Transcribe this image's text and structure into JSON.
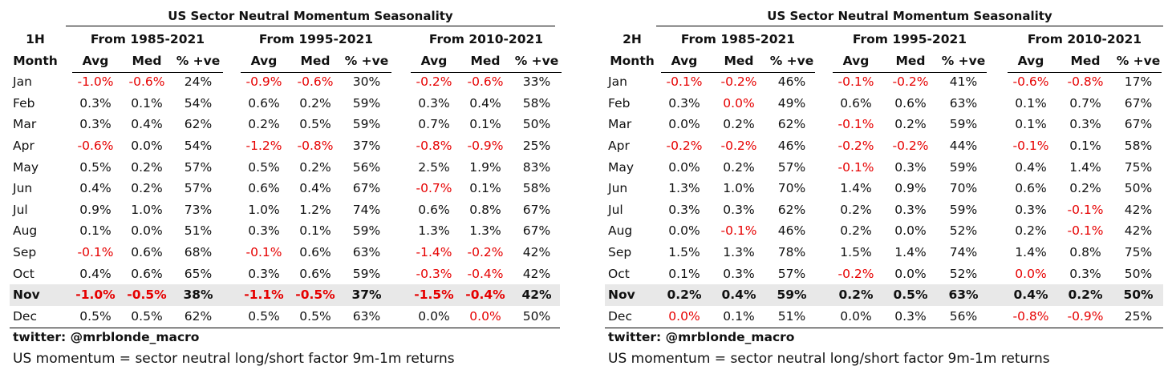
{
  "left": {
    "title": "US Sector Neutral Momentum Seasonality",
    "half": "1H",
    "month_header": "Month",
    "groups": [
      "From 1985-2021",
      "From 1995-2021",
      "From 2010-2021"
    ],
    "subheaders": [
      "Avg",
      "Med",
      "% +ve"
    ],
    "rows": [
      {
        "m": "Jan",
        "v": [
          "-1.0%",
          "-0.6%",
          "24%",
          "-0.9%",
          "-0.6%",
          "30%",
          "-0.2%",
          "-0.6%",
          "33%"
        ]
      },
      {
        "m": "Feb",
        "v": [
          "0.3%",
          "0.1%",
          "54%",
          "0.6%",
          "0.2%",
          "59%",
          "0.3%",
          "0.4%",
          "58%"
        ]
      },
      {
        "m": "Mar",
        "v": [
          "0.3%",
          "0.4%",
          "62%",
          "0.2%",
          "0.5%",
          "59%",
          "0.7%",
          "0.1%",
          "50%"
        ]
      },
      {
        "m": "Apr",
        "v": [
          "-0.6%",
          "0.0%",
          "54%",
          "-1.2%",
          "-0.8%",
          "37%",
          "-0.8%",
          "-0.9%",
          "25%"
        ]
      },
      {
        "m": "May",
        "v": [
          "0.5%",
          "0.2%",
          "57%",
          "0.5%",
          "0.2%",
          "56%",
          "2.5%",
          "1.9%",
          "83%"
        ]
      },
      {
        "m": "Jun",
        "v": [
          "0.4%",
          "0.2%",
          "57%",
          "0.6%",
          "0.4%",
          "67%",
          "-0.7%",
          "0.1%",
          "58%"
        ]
      },
      {
        "m": "Jul",
        "v": [
          "0.9%",
          "1.0%",
          "73%",
          "1.0%",
          "1.2%",
          "74%",
          "0.6%",
          "0.8%",
          "67%"
        ]
      },
      {
        "m": "Aug",
        "v": [
          "0.1%",
          "0.0%",
          "51%",
          "0.3%",
          "0.1%",
          "59%",
          "1.3%",
          "1.3%",
          "67%"
        ]
      },
      {
        "m": "Sep",
        "v": [
          "-0.1%",
          "0.6%",
          "68%",
          "-0.1%",
          "0.6%",
          "63%",
          "-1.4%",
          "-0.2%",
          "42%"
        ]
      },
      {
        "m": "Oct",
        "v": [
          "0.4%",
          "0.6%",
          "65%",
          "0.3%",
          "0.6%",
          "59%",
          "-0.3%",
          "-0.4%",
          "42%"
        ]
      },
      {
        "m": "Nov",
        "v": [
          "-1.0%",
          "-0.5%",
          "38%",
          "-1.1%",
          "-0.5%",
          "37%",
          "-1.5%",
          "-0.4%",
          "42%"
        ],
        "hl": true
      },
      {
        "m": "Dec",
        "v": [
          "0.5%",
          "0.5%",
          "62%",
          "0.5%",
          "0.5%",
          "63%",
          "0.0%",
          "0.0%",
          "50%"
        ]
      }
    ],
    "neg_red": [
      [
        "Jan",
        0
      ],
      [
        "Jan",
        1
      ],
      [
        "Jan",
        3
      ],
      [
        "Jan",
        4
      ],
      [
        "Jan",
        6
      ],
      [
        "Jan",
        7
      ],
      [
        "Apr",
        0
      ],
      [
        "Apr",
        3
      ],
      [
        "Apr",
        4
      ],
      [
        "Apr",
        6
      ],
      [
        "Apr",
        7
      ],
      [
        "Jun",
        6
      ],
      [
        "Sep",
        0
      ],
      [
        "Sep",
        3
      ],
      [
        "Sep",
        6
      ],
      [
        "Sep",
        7
      ],
      [
        "Oct",
        6
      ],
      [
        "Oct",
        7
      ],
      [
        "Nov",
        0
      ],
      [
        "Nov",
        1
      ],
      [
        "Nov",
        3
      ],
      [
        "Nov",
        4
      ],
      [
        "Nov",
        6
      ],
      [
        "Nov",
        7
      ],
      [
        "Dec",
        7
      ]
    ],
    "footer_handle": "twitter: @mrblonde_macro",
    "footer_note": "US momentum = sector neutral long/short factor 9m-1m returns"
  },
  "right": {
    "title": "US Sector Neutral Momentum Seasonality",
    "half": "2H",
    "month_header": "Month",
    "groups": [
      "From 1985-2021",
      "From 1995-2021",
      "From 2010-2021"
    ],
    "subheaders": [
      "Avg",
      "Med",
      "% +ve"
    ],
    "rows": [
      {
        "m": "Jan",
        "v": [
          "-0.1%",
          "-0.2%",
          "46%",
          "-0.1%",
          "-0.2%",
          "41%",
          "-0.6%",
          "-0.8%",
          "17%"
        ]
      },
      {
        "m": "Feb",
        "v": [
          "0.3%",
          "0.0%",
          "49%",
          "0.6%",
          "0.6%",
          "63%",
          "0.1%",
          "0.7%",
          "67%"
        ]
      },
      {
        "m": "Mar",
        "v": [
          "0.0%",
          "0.2%",
          "62%",
          "-0.1%",
          "0.2%",
          "59%",
          "0.1%",
          "0.3%",
          "67%"
        ]
      },
      {
        "m": "Apr",
        "v": [
          "-0.2%",
          "-0.2%",
          "46%",
          "-0.2%",
          "-0.2%",
          "44%",
          "-0.1%",
          "0.1%",
          "58%"
        ]
      },
      {
        "m": "May",
        "v": [
          "0.0%",
          "0.2%",
          "57%",
          "-0.1%",
          "0.3%",
          "59%",
          "0.4%",
          "1.4%",
          "75%"
        ]
      },
      {
        "m": "Jun",
        "v": [
          "1.3%",
          "1.0%",
          "70%",
          "1.4%",
          "0.9%",
          "70%",
          "0.6%",
          "0.2%",
          "50%"
        ]
      },
      {
        "m": "Jul",
        "v": [
          "0.3%",
          "0.3%",
          "62%",
          "0.2%",
          "0.3%",
          "59%",
          "0.3%",
          "-0.1%",
          "42%"
        ]
      },
      {
        "m": "Aug",
        "v": [
          "0.0%",
          "-0.1%",
          "46%",
          "0.2%",
          "0.0%",
          "52%",
          "0.2%",
          "-0.1%",
          "42%"
        ]
      },
      {
        "m": "Sep",
        "v": [
          "1.5%",
          "1.3%",
          "78%",
          "1.5%",
          "1.4%",
          "74%",
          "1.4%",
          "0.8%",
          "75%"
        ]
      },
      {
        "m": "Oct",
        "v": [
          "0.1%",
          "0.3%",
          "57%",
          "-0.2%",
          "0.0%",
          "52%",
          "0.0%",
          "0.3%",
          "50%"
        ]
      },
      {
        "m": "Nov",
        "v": [
          "0.2%",
          "0.4%",
          "59%",
          "0.2%",
          "0.5%",
          "63%",
          "0.4%",
          "0.2%",
          "50%"
        ],
        "hl": true
      },
      {
        "m": "Dec",
        "v": [
          "0.0%",
          "0.1%",
          "51%",
          "0.0%",
          "0.3%",
          "56%",
          "-0.8%",
          "-0.9%",
          "25%"
        ]
      }
    ],
    "neg_red": [
      [
        "Jan",
        0
      ],
      [
        "Jan",
        1
      ],
      [
        "Jan",
        3
      ],
      [
        "Jan",
        4
      ],
      [
        "Jan",
        6
      ],
      [
        "Jan",
        7
      ],
      [
        "Feb",
        1
      ],
      [
        "Mar",
        3
      ],
      [
        "Apr",
        0
      ],
      [
        "Apr",
        1
      ],
      [
        "Apr",
        3
      ],
      [
        "Apr",
        4
      ],
      [
        "Apr",
        6
      ],
      [
        "May",
        3
      ],
      [
        "Jul",
        7
      ],
      [
        "Aug",
        1
      ],
      [
        "Aug",
        7
      ],
      [
        "Oct",
        3
      ],
      [
        "Oct",
        6
      ],
      [
        "Dec",
        0
      ],
      [
        "Dec",
        6
      ],
      [
        "Dec",
        7
      ]
    ],
    "footer_handle": "twitter: @mrblonde_macro",
    "footer_note": "US momentum = sector neutral long/short factor 9m-1m returns"
  },
  "colors": {
    "negative": "#e60000",
    "highlight_row": "#e8e8e8"
  }
}
